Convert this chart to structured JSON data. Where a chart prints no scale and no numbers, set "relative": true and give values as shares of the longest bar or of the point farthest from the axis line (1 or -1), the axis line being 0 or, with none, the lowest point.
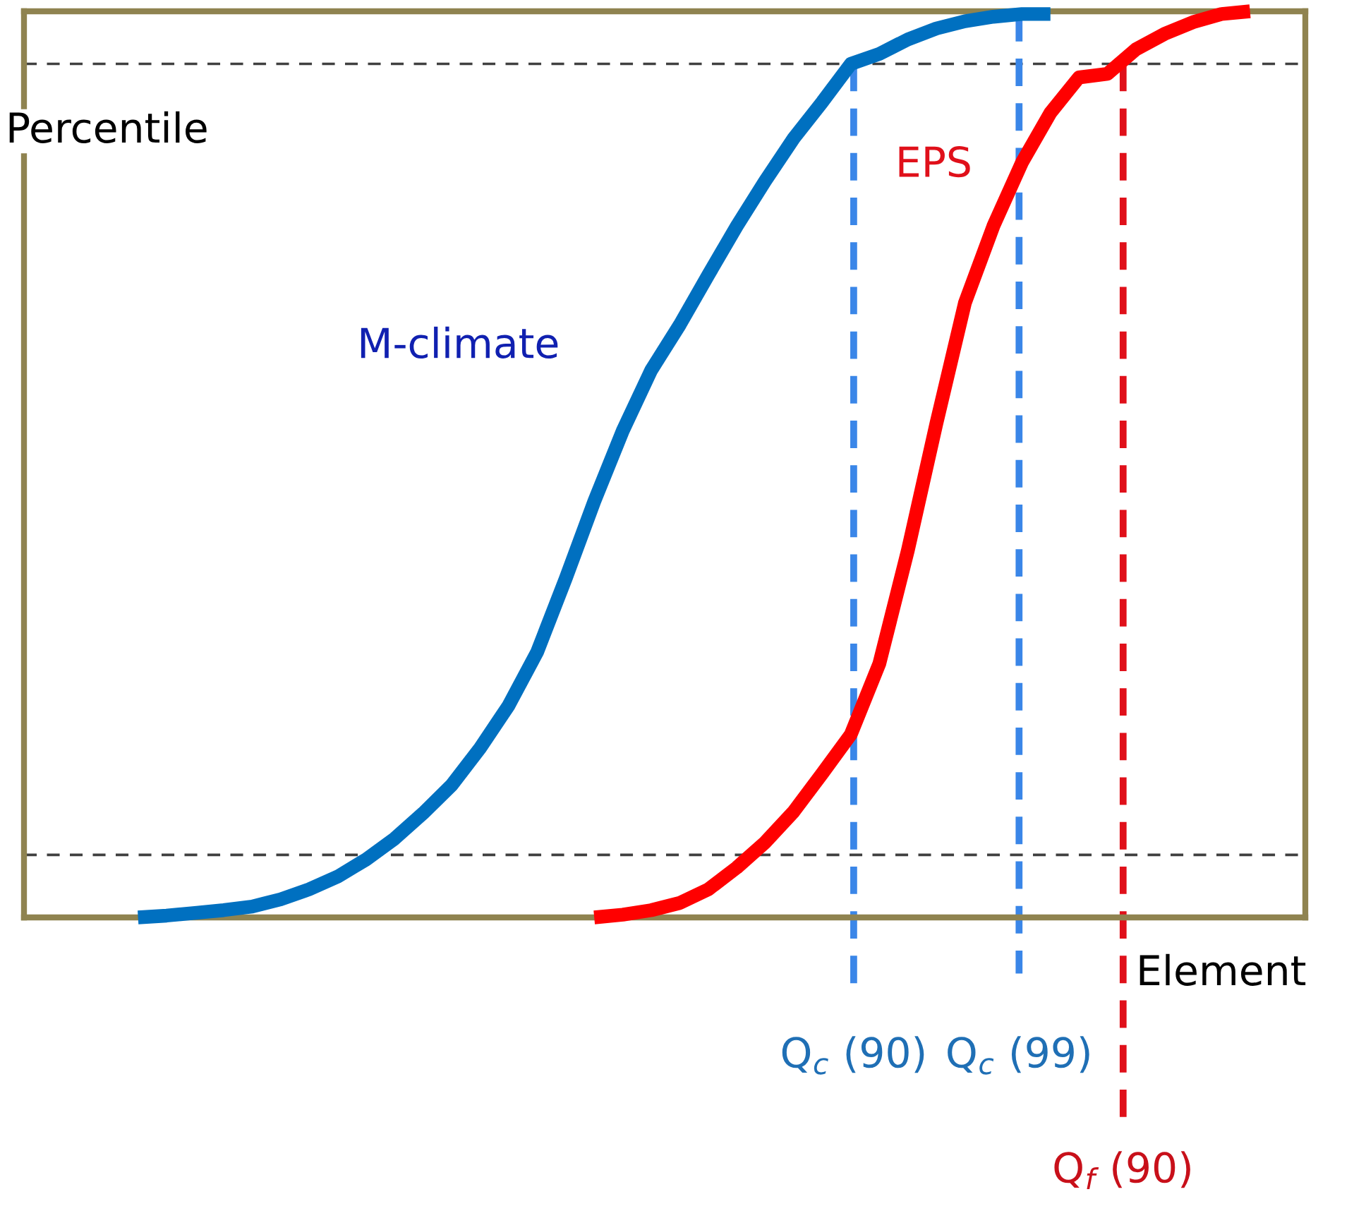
{
  "chart_data": {
    "type": "line",
    "relative": true,
    "xlabel": "Element",
    "ylabel": "Percentile",
    "categories": [
      null,
      null,
      null,
      null,
      null,
      null,
      null,
      null,
      null,
      null,
      null,
      null,
      null,
      null,
      null,
      null,
      null,
      null,
      null,
      null,
      null,
      null,
      null,
      null,
      null,
      null,
      null,
      null,
      null,
      null,
      null,
      null,
      null,
      null,
      null,
      null,
      null,
      null,
      null,
      null
    ],
    "series": [
      {
        "name": "M-climate",
        "color": "#0070c0",
        "values": [
          0,
          0.002,
          0.005,
          0.008,
          0.012,
          0.02,
          0.031,
          0.045,
          0.064,
          0.087,
          0.115,
          0.146,
          0.187,
          0.234,
          0.293,
          0.374,
          0.459,
          0.537,
          0.604,
          0.654,
          0.709,
          0.763,
          0.813,
          0.86,
          0.9,
          0.942,
          0.953,
          0.969,
          0.981,
          0.989,
          0.994,
          0.997,
          0.997,
          null,
          null,
          null,
          null,
          null,
          null,
          null
        ]
      },
      {
        "name": "EPS",
        "color": "#ff0000",
        "values": [
          null,
          null,
          null,
          null,
          null,
          null,
          null,
          null,
          null,
          null,
          null,
          null,
          null,
          null,
          null,
          null,
          0,
          0.003,
          0.008,
          0.016,
          0.031,
          0.055,
          0.083,
          0.117,
          0.159,
          0.202,
          0.28,
          0.405,
          0.545,
          0.678,
          0.763,
          0.833,
          0.888,
          0.927,
          0.931,
          0.958,
          0.975,
          0.988,
          0.997,
          1
        ]
      }
    ],
    "ref_lines": [
      {
        "axis": "y",
        "value": 0.942,
        "label": null,
        "color": "#404040",
        "line_style": "dashed"
      },
      {
        "axis": "y",
        "value": 0.069,
        "label": null,
        "color": "#404040",
        "line_style": "dashed"
      }
    ],
    "annotations": [
      "Q$_{c}$ (90)",
      "Q$_{c}$ (99)",
      "Q$_{f}$ (90)"
    ]
  }
}
